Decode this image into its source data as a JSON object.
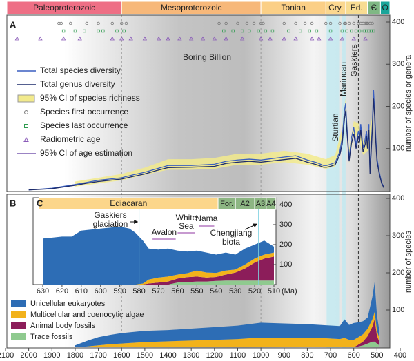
{
  "chart_data": [
    {
      "type": "line",
      "label": "A",
      "xlim": [
        2100,
        400
      ],
      "ylim": [
        0,
        400
      ],
      "yticks": [
        100,
        200,
        300,
        400
      ],
      "ylabel": "number of species or genera",
      "periods": [
        {
          "name": "Paleoproterozoic",
          "start": 2100,
          "end": 1600,
          "color": "#ee6f85"
        },
        {
          "name": "Mesoproterozoic",
          "start": 1600,
          "end": 1000,
          "color": "#f7b87a"
        },
        {
          "name": "Tonian",
          "start": 1000,
          "end": 720,
          "color": "#fbcf86"
        },
        {
          "name": "Cry.",
          "start": 720,
          "end": 635,
          "color": "#fbd78f"
        },
        {
          "name": "Ed.",
          "start": 635,
          "end": 541,
          "color": "#f8dc92"
        },
        {
          "name": "Є",
          "start": 541,
          "end": 485,
          "color": "#7fb884"
        },
        {
          "name": "O",
          "start": 485,
          "end": 443,
          "color": "#1aa59a"
        }
      ],
      "annotation": "Boring Billion",
      "zones": [
        {
          "label": "Sturtian",
          "start": 717,
          "end": 660
        },
        {
          "label": "Marinoan",
          "start": 650,
          "end": 635
        },
        {
          "label": "Gaskiers",
          "start": 580,
          "end": 579
        }
      ],
      "x": [
        2000,
        1900,
        1800,
        1750,
        1700,
        1650,
        1600,
        1550,
        1500,
        1450,
        1400,
        1300,
        1200,
        1150,
        1100,
        1050,
        1000,
        900,
        850,
        800,
        760,
        730,
        717,
        700,
        680,
        660,
        650,
        640,
        635,
        630,
        620,
        610,
        600,
        590,
        580,
        575,
        570,
        560,
        550,
        545,
        541,
        535,
        530,
        520,
        515,
        510,
        505,
        500,
        490,
        480,
        470
      ],
      "series": [
        {
          "name": "Total species diversity",
          "color": "#3a5fc0",
          "values": [
            2,
            6,
            15,
            20,
            25,
            28,
            31,
            38,
            44,
            52,
            60,
            60,
            63,
            70,
            73,
            75,
            73,
            80,
            83,
            73,
            67,
            60,
            60,
            63,
            67,
            93,
            125,
            190,
            207,
            158,
            77,
            125,
            150,
            109,
            142,
            125,
            158,
            101,
            125,
            142,
            109,
            158,
            44,
            158,
            240,
            190,
            125,
            77,
            44,
            20,
            8
          ]
        },
        {
          "name": "Total genus diversity",
          "color": "#1d2c6b",
          "values": [
            2,
            5,
            13,
            18,
            22,
            25,
            28,
            34,
            40,
            48,
            55,
            56,
            58,
            65,
            68,
            70,
            68,
            74,
            77,
            68,
            62,
            56,
            56,
            58,
            62,
            85,
            110,
            170,
            190,
            145,
            70,
            112,
            135,
            100,
            130,
            115,
            145,
            92,
            112,
            130,
            100,
            145,
            40,
            145,
            220,
            175,
            115,
            70,
            40,
            18,
            7
          ]
        }
      ],
      "ci": {
        "name": "95% CI of species richness",
        "color": "#f2ea8c",
        "x": [
          1800,
          1600,
          1500,
          1400,
          1300,
          1200,
          1100,
          1000,
          900,
          800,
          720,
          680,
          650,
          635,
          620,
          600,
          580,
          560,
          540,
          520
        ],
        "upper": [
          22,
          40,
          55,
          75,
          75,
          78,
          88,
          88,
          95,
          88,
          75,
          85,
          150,
          220,
          100,
          165,
          160,
          120,
          130,
          175
        ],
        "lower": [
          10,
          25,
          38,
          50,
          50,
          52,
          62,
          62,
          68,
          62,
          52,
          58,
          105,
          190,
          65,
          135,
          125,
          85,
          95,
          140
        ]
      },
      "first_occurrence": {
        "name": "Species first occurrence",
        "color": "#777777",
        "x": [
          1870,
          1860,
          1820,
          1750,
          1700,
          1640,
          1600,
          1580,
          1180,
          1150,
          1100,
          1060,
          1030,
          1000,
          990,
          900,
          850,
          810,
          780,
          720,
          700,
          660,
          640,
          635,
          620,
          600,
          580,
          570,
          560,
          550,
          545,
          540,
          530,
          520
        ]
      },
      "last_occurrence": {
        "name": "Species last occurrence",
        "color": "#2e9b4f",
        "x": [
          1850,
          1800,
          1760,
          1700,
          1680,
          1620,
          1590,
          1160,
          1120,
          1080,
          1050,
          1010,
          980,
          950,
          880,
          830,
          790,
          760,
          700,
          650,
          630,
          610,
          590,
          575,
          555,
          545,
          535,
          525,
          515
        ]
      },
      "radiometric_age": {
        "name": "Radiometric age",
        "color": "#8a5bb8",
        "x": [
          2050,
          1950,
          1850,
          1780,
          1640,
          1600,
          1560,
          1500,
          1440,
          1400,
          1350,
          1300,
          1250,
          1200,
          1150,
          1080,
          1000,
          960,
          900,
          850,
          780,
          750,
          700,
          650,
          600,
          550
        ]
      },
      "age_ci": {
        "name": "95% CI of age estimation",
        "color": "#7a5bb0"
      }
    },
    {
      "type": "area",
      "label": "B",
      "xlim": [
        2100,
        400
      ],
      "ylim": [
        0,
        400
      ],
      "yticks": [
        100,
        200,
        300,
        400
      ],
      "ylabel": "number of species",
      "xticks": [
        2100,
        2000,
        1900,
        1800,
        1700,
        1600,
        1500,
        1400,
        1300,
        1200,
        1100,
        1000,
        900,
        800,
        700,
        600,
        500,
        400
      ],
      "x": [
        1800,
        1750,
        1700,
        1650,
        1600,
        1500,
        1400,
        1300,
        1200,
        1100,
        1050,
        1000,
        900,
        800,
        720,
        660,
        640,
        620,
        600,
        580,
        560,
        540,
        520,
        510,
        500,
        490
      ],
      "series": [
        {
          "name": "Unicellular eukaryotes",
          "color": "#2d6db5",
          "values": [
            5,
            15,
            22,
            25,
            28,
            30,
            30,
            32,
            34,
            36,
            38,
            40,
            38,
            36,
            35,
            35,
            50,
            40,
            45,
            40,
            35,
            30,
            60,
            80,
            40,
            20
          ]
        },
        {
          "name": "Multicellular and coenocytic algae",
          "color": "#f2b21b",
          "values": [
            0,
            2,
            5,
            8,
            10,
            14,
            16,
            18,
            20,
            22,
            24,
            26,
            26,
            26,
            24,
            22,
            25,
            20,
            20,
            20,
            20,
            20,
            20,
            20,
            15,
            10
          ]
        },
        {
          "name": "Animal body fossils",
          "color": "#8c1d5a",
          "values": [
            0,
            0,
            0,
            0,
            0,
            0,
            0,
            0,
            0,
            0,
            0,
            0,
            0,
            0,
            0,
            0,
            0,
            0,
            0,
            5,
            10,
            20,
            40,
            60,
            20,
            10
          ]
        },
        {
          "name": "Trace fossils",
          "color": "#8fca8f",
          "values": [
            0,
            0,
            0,
            0,
            0,
            0,
            0,
            0,
            0,
            0,
            0,
            0,
            0,
            0,
            0,
            0,
            0,
            0,
            0,
            2,
            5,
            10,
            15,
            15,
            10,
            5
          ]
        }
      ]
    },
    {
      "type": "area",
      "label": "C",
      "xlim": [
        630,
        510
      ],
      "ylim": [
        0,
        400
      ],
      "yticks": [
        100,
        200,
        300,
        400
      ],
      "xticks": [
        630,
        620,
        610,
        600,
        590,
        580,
        570,
        560,
        550,
        540,
        530,
        520,
        510
      ],
      "xunit": "(Ma)",
      "periods": [
        {
          "name": "Ediacaran",
          "start": 632,
          "end": 539,
          "color": "#fcd68a"
        },
        {
          "name": "For.",
          "start": 539,
          "end": 530,
          "color": "#8db683"
        },
        {
          "name": "A2",
          "start": 530,
          "end": 520,
          "color": "#8db683"
        },
        {
          "name": "A3",
          "start": 520,
          "end": 514,
          "color": "#8db683"
        },
        {
          "name": "A4",
          "start": 514,
          "end": 509,
          "color": "#8db683"
        }
      ],
      "biotas": [
        {
          "lines": [
            "Avalon"
          ],
          "start": 573,
          "end": 561
        },
        {
          "lines": [
            "White",
            "Sea"
          ],
          "start": 560,
          "end": 551
        },
        {
          "lines": [
            "Nama"
          ],
          "start": 549,
          "end": 541
        }
      ],
      "gaskiers": {
        "lines": [
          "Gaskiers",
          "glaciation"
        ],
        "x": 580
      },
      "chengjiang": {
        "lines": [
          "Chengjiang",
          "biota"
        ],
        "x": 518
      },
      "x": [
        630,
        625,
        620,
        615,
        610,
        605,
        600,
        595,
        590,
        585,
        582,
        578,
        575,
        570,
        565,
        560,
        555,
        550,
        545,
        540,
        535,
        530,
        525,
        520,
        515,
        510
      ],
      "series": [
        {
          "name": "Unicellular eukaryotes",
          "color": "#2d6db5",
          "values": [
            230,
            235,
            240,
            240,
            270,
            275,
            280,
            285,
            290,
            280,
            260,
            215,
            155,
            140,
            140,
            120,
            108,
            100,
            100,
            92,
            90,
            75,
            80,
            70,
            70,
            30
          ]
        },
        {
          "name": "Multicellular and coenocytic algae",
          "color": "#f2b21b",
          "values": [
            0,
            0,
            0,
            0,
            0,
            0,
            0,
            0,
            0,
            0,
            0,
            5,
            20,
            25,
            25,
            20,
            20,
            30,
            25,
            20,
            20,
            15,
            20,
            20,
            20,
            20
          ]
        },
        {
          "name": "Animal body fossils",
          "color": "#8c1d5a",
          "values": [
            0,
            0,
            0,
            0,
            0,
            0,
            0,
            0,
            0,
            0,
            0,
            0,
            5,
            10,
            15,
            20,
            25,
            25,
            20,
            20,
            30,
            40,
            60,
            90,
            110,
            120
          ]
        },
        {
          "name": "Trace fossils",
          "color": "#8fca8f",
          "values": [
            0,
            0,
            0,
            0,
            0,
            0,
            0,
            0,
            0,
            0,
            0,
            0,
            0,
            0,
            0,
            10,
            12,
            15,
            15,
            18,
            20,
            20,
            20,
            20,
            20,
            20
          ]
        }
      ]
    }
  ]
}
